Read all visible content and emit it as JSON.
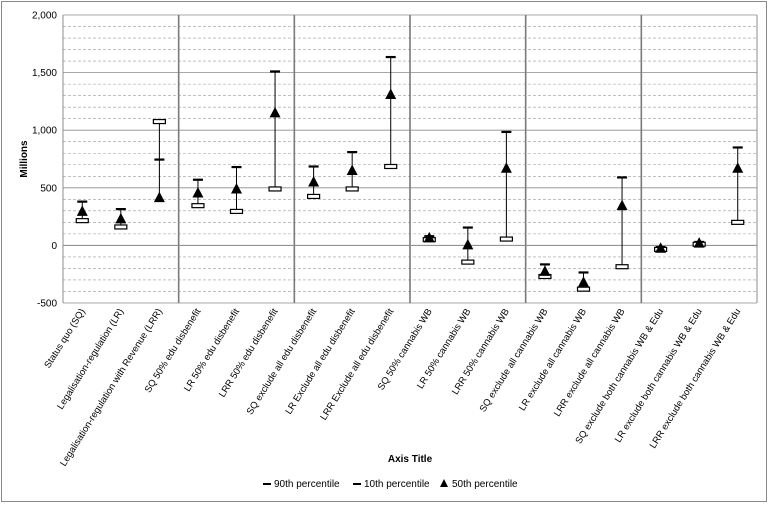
{
  "chart_data": {
    "type": "scatter",
    "title": "",
    "xlabel": "Axis Title",
    "ylabel": "Millions",
    "ylim": [
      -500,
      2000
    ],
    "ytick_step": 500,
    "y_tick_labels": [
      "-500",
      "0",
      "500",
      "1,000",
      "1,500",
      "2,000"
    ],
    "categories": [
      "Status quo (SQ)",
      "Legalisation-regulation (LR)",
      "Legalisation-regulation with Revenue (LRR)",
      "SQ 50% edu disbenefit",
      "LR 50% edu disbenefit",
      "LRR 50% edu disbenefit",
      "SQ exclude all edu disbenefit",
      "LR Exclude all edu disbenefit",
      "LRR Exclude all edu disbenefit",
      "SQ 50% cannabis WB",
      "LR 50% cannabis WB",
      "LRR 50% cannabis WB",
      "SQ exclude all cannabis WB",
      "LR exclude all cannabis WB",
      "LRR exclude all cannabis WB",
      "SQ exclude both cannabis WB & Edu",
      "LR exclude both cannabis WB & Edu",
      "LRR exclude both cannabis WB & Edu"
    ],
    "group_separators_after_index": [
      2,
      5,
      8,
      11,
      14
    ],
    "series": [
      {
        "name": "90th percentile",
        "marker": "dash",
        "values": [
          380,
          315,
          745,
          570,
          680,
          1510,
          685,
          810,
          1635,
          80,
          155,
          985,
          -165,
          -235,
          590,
          -15,
          30,
          850
        ]
      },
      {
        "name": "10th percentile",
        "marker": "box",
        "values": [
          215,
          160,
          1075,
          345,
          295,
          490,
          425,
          490,
          685,
          50,
          -145,
          55,
          -270,
          -380,
          -185,
          -35,
          10,
          200
        ]
      },
      {
        "name": "50th percentile",
        "marker": "triangle",
        "values": [
          295,
          230,
          415,
          455,
          490,
          1150,
          550,
          650,
          1310,
          65,
          5,
          670,
          -225,
          -320,
          345,
          -25,
          20,
          670
        ]
      }
    ],
    "grid": true,
    "legend_position": "bottom"
  }
}
